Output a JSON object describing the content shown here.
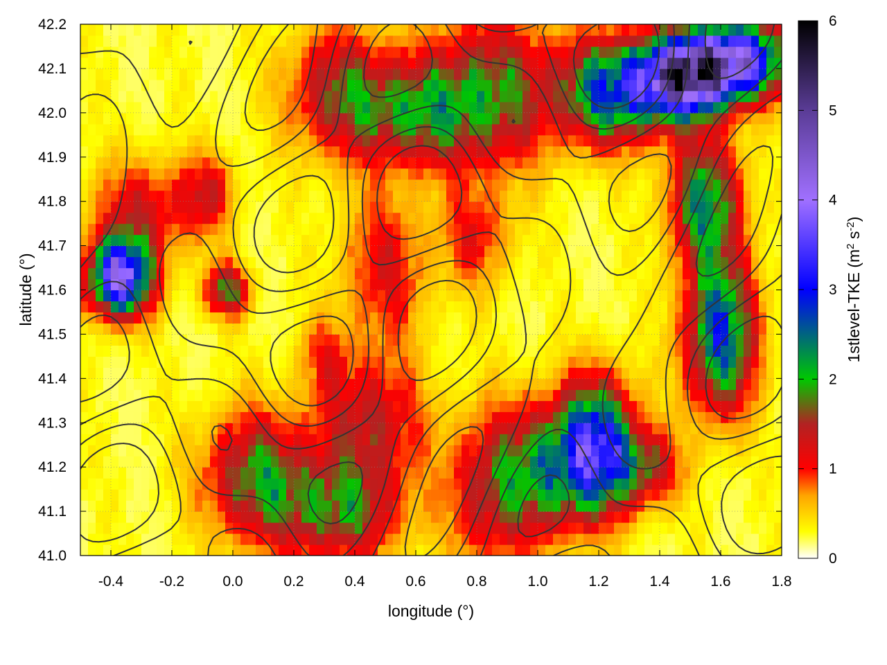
{
  "chart_data": {
    "type": "heatmap",
    "title": "",
    "xlabel": "longitude (°)",
    "ylabel": "latitude (°)",
    "xlim": [
      -0.5,
      1.8
    ],
    "ylim": [
      41.0,
      42.2
    ],
    "xticks": [
      -0.4,
      -0.2,
      0.0,
      0.2,
      0.4,
      0.6,
      0.8,
      1.0,
      1.2,
      1.4,
      1.6,
      1.8
    ],
    "xtick_labels": [
      "-0.4",
      "-0.2",
      "0.0",
      "0.2",
      "0.4",
      "0.6",
      "0.8",
      "1.0",
      "1.2",
      "1.4",
      "1.6",
      "1.8"
    ],
    "yticks": [
      41.0,
      41.1,
      41.2,
      41.3,
      41.4,
      41.5,
      41.6,
      41.7,
      41.8,
      41.9,
      42.0,
      42.1,
      42.2
    ],
    "ytick_labels": [
      "41.0",
      "41.1",
      "41.2",
      "41.3",
      "41.4",
      "41.5",
      "41.6",
      "41.7",
      "41.8",
      "41.9",
      "42.0",
      "42.1",
      "42.2"
    ],
    "colorbar": {
      "label_main": "1stlevel-TKE (m",
      "label_sup1": "2",
      "label_mid": " s",
      "label_sup2": "-2",
      "label_end": ")",
      "range": [
        0,
        6
      ],
      "ticks": [
        0,
        1,
        2,
        3,
        4,
        5,
        6
      ],
      "tick_labels": [
        "0",
        "1",
        "2",
        "3",
        "4",
        "5",
        "6"
      ],
      "stops": [
        {
          "v": 0.0,
          "color": "#ffffff"
        },
        {
          "v": 0.3,
          "color": "#ffff00"
        },
        {
          "v": 0.7,
          "color": "#ffa500"
        },
        {
          "v": 1.0,
          "color": "#ff0000"
        },
        {
          "v": 1.5,
          "color": "#b22222"
        },
        {
          "v": 2.0,
          "color": "#00c800"
        },
        {
          "v": 3.0,
          "color": "#0000ff"
        },
        {
          "v": 4.0,
          "color": "#a070ff"
        },
        {
          "v": 5.0,
          "color": "#5a3c96"
        },
        {
          "v": 6.0,
          "color": "#000000"
        }
      ]
    },
    "grid": true,
    "contour_color": "#333333",
    "hotspots": [
      {
        "lon": -0.37,
        "lat": 41.63,
        "sx": 0.07,
        "sy": 0.06,
        "v": 3.8
      },
      {
        "lon": -0.29,
        "lat": 41.78,
        "sx": 0.12,
        "sy": 0.08,
        "v": 1.0
      },
      {
        "lon": -0.08,
        "lat": 41.82,
        "sx": 0.06,
        "sy": 0.06,
        "v": 0.9
      },
      {
        "lon": -0.02,
        "lat": 41.6,
        "sx": 0.05,
        "sy": 0.04,
        "v": 1.6
      },
      {
        "lon": 0.08,
        "lat": 41.18,
        "sx": 0.12,
        "sy": 0.1,
        "v": 1.6
      },
      {
        "lon": 0.35,
        "lat": 41.1,
        "sx": 0.14,
        "sy": 0.08,
        "v": 1.5
      },
      {
        "lon": 0.45,
        "lat": 41.3,
        "sx": 0.12,
        "sy": 0.1,
        "v": 1.2
      },
      {
        "lon": 0.5,
        "lat": 41.65,
        "sx": 0.1,
        "sy": 0.12,
        "v": 0.9
      },
      {
        "lon": 0.35,
        "lat": 42.05,
        "sx": 0.12,
        "sy": 0.1,
        "v": 1.3
      },
      {
        "lon": 0.6,
        "lat": 42.0,
        "sx": 0.14,
        "sy": 0.08,
        "v": 1.4
      },
      {
        "lon": 0.85,
        "lat": 42.05,
        "sx": 0.15,
        "sy": 0.12,
        "v": 1.5
      },
      {
        "lon": 1.25,
        "lat": 42.05,
        "sx": 0.12,
        "sy": 0.08,
        "v": 2.5
      },
      {
        "lon": 1.48,
        "lat": 42.08,
        "sx": 0.1,
        "sy": 0.06,
        "v": 4.2
      },
      {
        "lon": 1.65,
        "lat": 42.12,
        "sx": 0.12,
        "sy": 0.06,
        "v": 3.6
      },
      {
        "lon": 1.55,
        "lat": 41.8,
        "sx": 0.08,
        "sy": 0.1,
        "v": 2.0
      },
      {
        "lon": 1.6,
        "lat": 41.5,
        "sx": 0.08,
        "sy": 0.12,
        "v": 2.5
      },
      {
        "lon": 1.2,
        "lat": 41.25,
        "sx": 0.08,
        "sy": 0.1,
        "v": 2.8
      },
      {
        "lon": 1.05,
        "lat": 41.2,
        "sx": 0.1,
        "sy": 0.1,
        "v": 1.8
      },
      {
        "lon": 0.85,
        "lat": 41.15,
        "sx": 0.1,
        "sy": 0.12,
        "v": 1.3
      },
      {
        "lon": 1.35,
        "lat": 41.2,
        "sx": 0.08,
        "sy": 0.06,
        "v": 1.3
      },
      {
        "lon": 0.8,
        "lat": 41.72,
        "sx": 0.08,
        "sy": 0.08,
        "v": 0.8
      },
      {
        "lon": 0.3,
        "lat": 41.45,
        "sx": 0.06,
        "sy": 0.06,
        "v": 0.6
      }
    ]
  }
}
